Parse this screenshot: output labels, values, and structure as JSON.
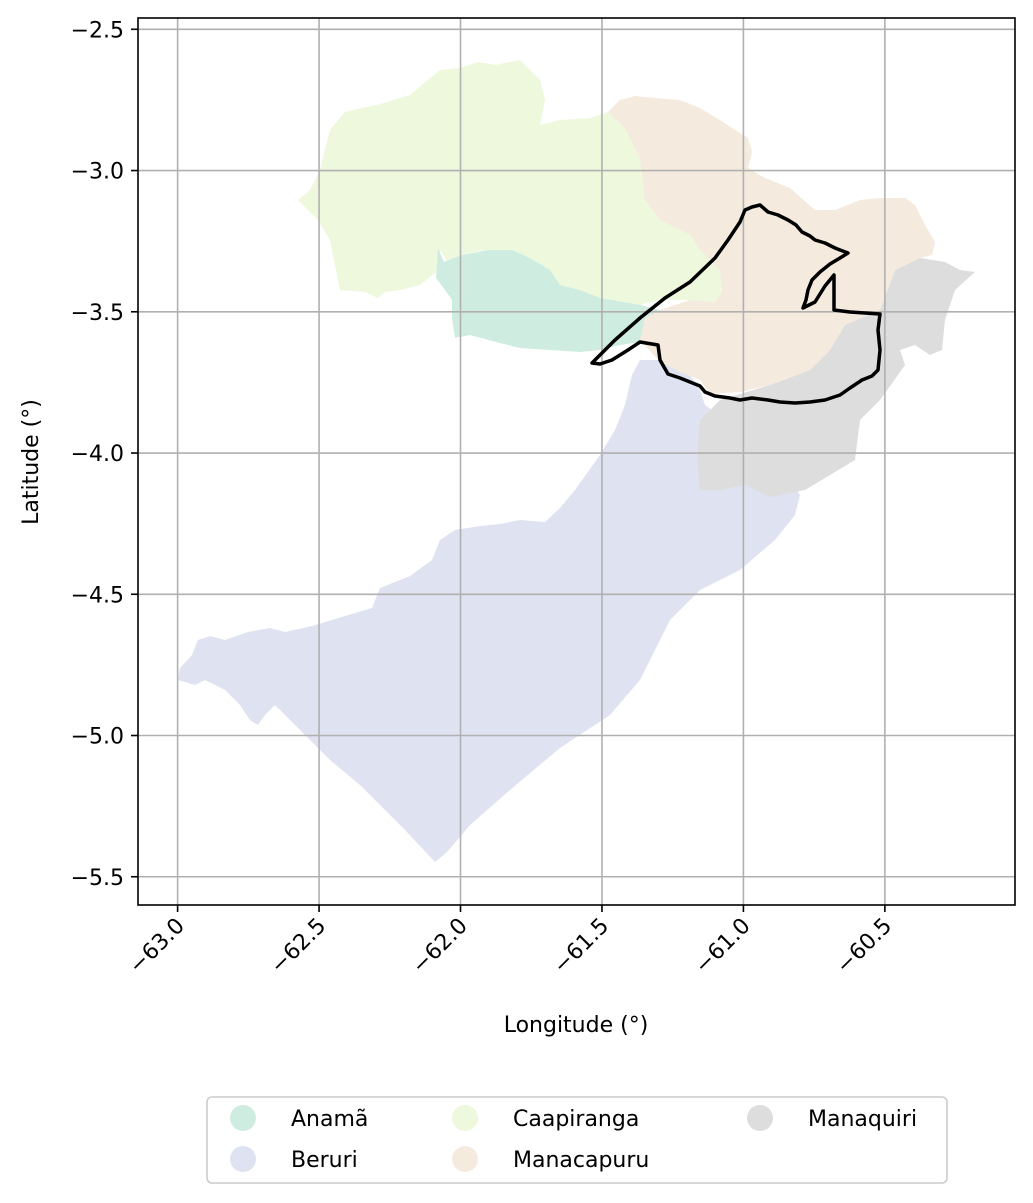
{
  "chart_data": {
    "type": "map",
    "xlabel": "Longitude (°)",
    "ylabel": "Latitude (°)",
    "xlim": [
      -63.14,
      -60.04
    ],
    "ylim": [
      -5.6,
      -2.46
    ],
    "x_ticks": [
      -63.0,
      -62.5,
      -62.0,
      -61.5,
      -61.0,
      -60.5
    ],
    "x_tick_labels": [
      "−63.0",
      "−62.5",
      "−62.0",
      "−61.5",
      "−61.0",
      "−60.5"
    ],
    "y_ticks": [
      -2.5,
      -3.0,
      -3.5,
      -4.0,
      -4.5,
      -5.0,
      -5.5
    ],
    "y_tick_labels": [
      "−2.5",
      "−3.0",
      "−3.5",
      "−4.0",
      "−4.5",
      "−5.0",
      "−5.5"
    ],
    "grid": true,
    "legend_position": "bottom-center",
    "regions": [
      {
        "name": "Anamã",
        "color": "#cfece0"
      },
      {
        "name": "Beruri",
        "color": "#dfe3f1"
      },
      {
        "name": "Caapiranga",
        "color": "#eef8dd"
      },
      {
        "name": "Manacapuru",
        "color": "#f4ebde"
      },
      {
        "name": "Manaquiri",
        "color": "#dddddd"
      }
    ],
    "highlight_outline": {
      "color": "#000000"
    }
  }
}
